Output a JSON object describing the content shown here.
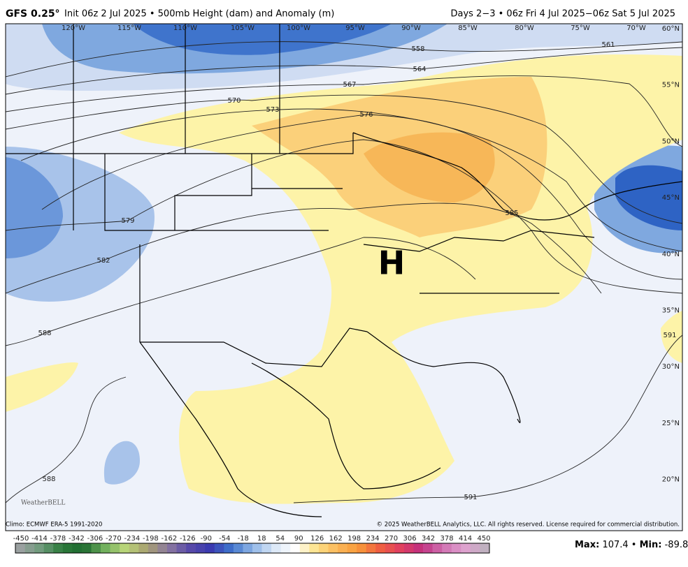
{
  "header": {
    "model": "GFS 0.25°",
    "title": "Init 06z 2 Jul 2025 • 500mb Height (dam) and Anomaly (m)",
    "valid": "Days 2−3 • 06z Fri 4 Jul 2025−06z Sat 5 Jul 2025"
  },
  "map": {
    "lon_labels": [
      "120°W",
      "115°W",
      "110°W",
      "105°W",
      "100°W",
      "95°W",
      "90°W",
      "85°W",
      "80°W",
      "75°W",
      "70°W"
    ],
    "lat_labels": [
      "60°N",
      "55°N",
      "50°N",
      "45°N",
      "40°N",
      "35°N",
      "30°N",
      "25°N",
      "20°N"
    ],
    "contour_labels": [
      "558",
      "561",
      "564",
      "567",
      "570",
      "573",
      "576",
      "579",
      "582",
      "585",
      "588",
      "588",
      "591",
      "591"
    ],
    "high_label": "H",
    "logo": "WeatherBELL"
  },
  "footer": {
    "climo": "Climo: ECMWF ERA-5 1991-2020",
    "copyright": "© 2025 WeatherBELL Analytics, LLC. All rights reserved. License required for commercial distribution."
  },
  "colorbar": {
    "ticks": [
      -450,
      -414,
      -378,
      -342,
      -306,
      -270,
      -234,
      -198,
      -162,
      -126,
      -90,
      -54,
      -18,
      18,
      54,
      90,
      126,
      162,
      198,
      234,
      270,
      306,
      342,
      378,
      414,
      450
    ]
  },
  "stats": {
    "max_label": "Max:",
    "max": 107.4,
    "sep": "•",
    "min_label": "Min:",
    "min": -89.8
  }
}
